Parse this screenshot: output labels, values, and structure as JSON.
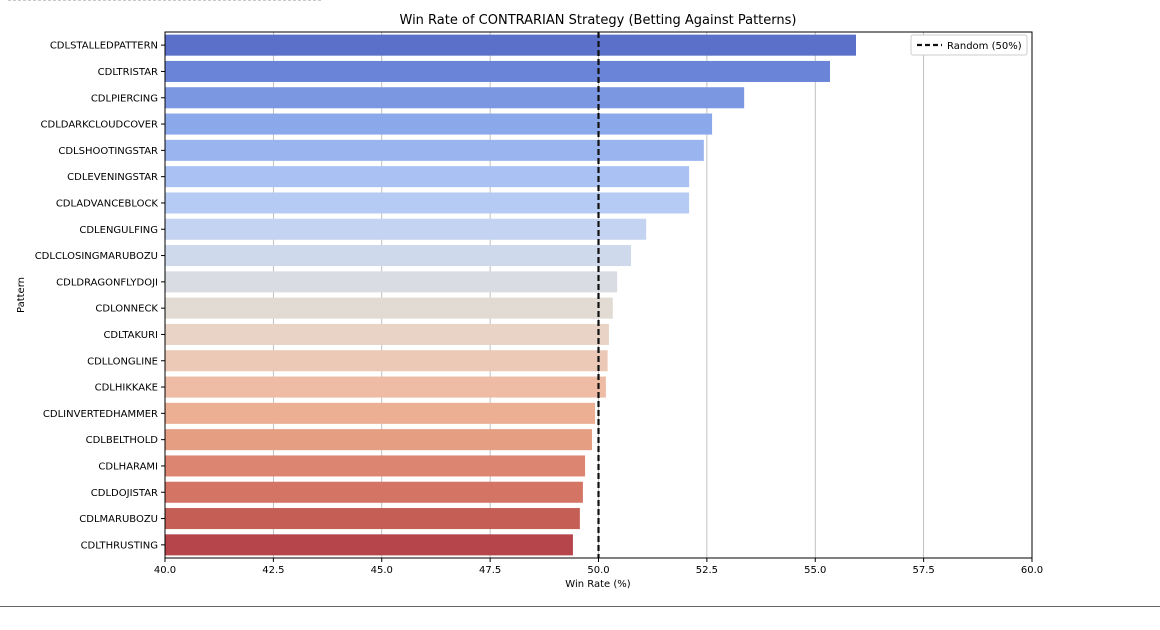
{
  "chart_data": {
    "type": "bar",
    "orientation": "horizontal",
    "title": "Win Rate of CONTRARIAN Strategy (Betting Against Patterns)",
    "xlabel": "Win Rate (%)",
    "ylabel": "Pattern",
    "xlim": [
      40,
      60
    ],
    "xticks": [
      "40.0",
      "42.5",
      "45.0",
      "47.5",
      "50.0",
      "52.5",
      "55.0",
      "57.5",
      "60.0"
    ],
    "grid": "vertical",
    "categories": [
      "CDLSTALLEDPATTERN",
      "CDLTRISTAR",
      "CDLPIERCING",
      "CDLDARKCLOUDCOVER",
      "CDLSHOOTINGSTAR",
      "CDLEVENINGSTAR",
      "CDLADVANCEBLOCK",
      "CDLENGULFING",
      "CDLCLOSINGMARUBOZU",
      "CDLDRAGONFLYDOJI",
      "CDLONNECK",
      "CDLTAKURI",
      "CDLLONGLINE",
      "CDLHIKKAKE",
      "CDLINVERTEDHAMMER",
      "CDLBELTHOLD",
      "CDLHARAMI",
      "CDLDOJISTAR",
      "CDLMARUBOZU",
      "CDLTHRUSTING"
    ],
    "values": [
      55.94,
      55.34,
      53.36,
      52.62,
      52.43,
      52.09,
      52.09,
      51.1,
      50.75,
      50.43,
      50.33,
      50.24,
      50.21,
      50.17,
      49.92,
      49.85,
      49.69,
      49.64,
      49.57,
      49.41
    ],
    "colors": [
      "#5b70c8",
      "#6a84d8",
      "#7b97e2",
      "#8ba8ea",
      "#9ab4ef",
      "#a9c1f3",
      "#b6cbf3",
      "#c4d3f2",
      "#cfd9ec",
      "#d9dce3",
      "#e2dbd4",
      "#e8d3c6",
      "#ecc8b7",
      "#eebca5",
      "#ecaf93",
      "#e59e82",
      "#dc8672",
      "#d37464",
      "#c55f55",
      "#b5454a"
    ],
    "reference_line": {
      "value": 50,
      "label": "Random (50%)",
      "style": "dashed",
      "color": "#111111"
    },
    "legend": {
      "position": "top-right",
      "entries": [
        "Random (50%)"
      ]
    }
  }
}
